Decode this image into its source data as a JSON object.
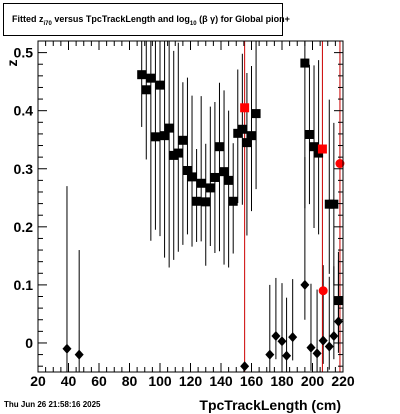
{
  "title": {
    "p1": "Fitted  z",
    "sub1": "i70",
    "p2": " versus TpcTrackLength and log",
    "sub2": "10",
    "p3": " (β  γ) for Global pion+"
  },
  "timestamp": "Thu Jun 26 21:58:16 2025",
  "colors": {
    "black": "#000000",
    "red": "#ff0000"
  },
  "chart_data": {
    "type": "scatter",
    "title": "Fitted z_i70 versus TpcTrackLength and log10(βγ) for Global pion+",
    "xlabel": "TpcTrackLength (cm)",
    "ylabel": "z",
    "xlim": [
      20,
      220
    ],
    "ylim": [
      -0.05,
      0.52
    ],
    "xticks": [
      20,
      40,
      60,
      80,
      100,
      120,
      140,
      160,
      180,
      200,
      220
    ],
    "yticks": [
      0,
      0.1,
      0.2,
      0.3,
      0.4,
      0.5
    ],
    "ytick_labels": [
      "0",
      "0.1",
      "0.2",
      "0.3",
      "0.4",
      "0.5"
    ],
    "vlines": [
      155.5,
      206.5,
      218
    ],
    "series": [
      {
        "marker": "square",
        "color": "#000000",
        "points": [
          [
            88,
            0.462,
            0.32,
            0.09
          ],
          [
            91,
            0.436,
            0.28,
            0.12
          ],
          [
            94,
            0.456,
            0.26,
            0.28
          ],
          [
            97,
            0.355,
            0.28,
            0.16
          ],
          [
            100,
            0.444,
            0.22,
            0.26
          ],
          [
            103,
            0.357,
            0.22,
            0.21
          ],
          [
            106,
            0.37,
            0.19,
            0.24
          ],
          [
            109,
            0.323,
            0.18,
            0.18
          ],
          [
            112,
            0.327,
            0.19,
            0.17
          ],
          [
            115,
            0.349,
            0.1,
            0.18
          ],
          [
            118,
            0.297,
            0.16,
            0.11
          ],
          [
            121,
            0.286,
            0.14,
            0.12
          ],
          [
            124,
            0.244,
            0.09,
            0.07
          ],
          [
            127,
            0.275,
            0.15,
            0.1
          ],
          [
            130,
            0.243,
            0.1,
            0.11
          ],
          [
            133,
            0.267,
            0.14,
            0.1
          ],
          [
            136,
            0.285,
            0.13,
            0.13
          ],
          [
            139,
            0.338,
            0.11,
            0.18
          ],
          [
            142,
            0.295,
            0.14,
            0.16
          ],
          [
            145,
            0.28,
            0.12,
            0.15
          ],
          [
            148,
            0.244,
            0.1,
            0.09
          ],
          [
            151,
            0.361,
            0.11,
            0.12
          ],
          [
            154,
            0.368,
            0.13,
            0.13
          ],
          [
            157,
            0.345,
            0.12,
            0.16
          ],
          [
            160,
            0.357,
            0.12,
            0.13
          ],
          [
            163,
            0.395,
            0.14,
            0.13
          ],
          [
            195,
            0.482,
            0.2,
            0.25
          ],
          [
            198,
            0.359,
            0.12,
            0.12
          ],
          [
            201,
            0.338,
            0.14,
            0.14
          ],
          [
            204,
            0.327,
            0.16,
            0.14
          ],
          [
            211,
            0.239,
            0.18,
            0.12
          ],
          [
            214,
            0.239,
            0.14,
            0.14
          ],
          [
            217,
            0.073,
            0.07,
            0.09
          ]
        ]
      },
      {
        "marker": "diamond",
        "color": "#000000",
        "points": [
          [
            39,
            -0.01,
            0.28,
            0.05
          ],
          [
            47,
            -0.02,
            0.18,
            0.04
          ],
          [
            155.5,
            -0.04,
            0.0,
            0.0
          ],
          [
            172,
            -0.02,
            0.12,
            0.04
          ],
          [
            176,
            0.012,
            0.1,
            0.04
          ],
          [
            180,
            0.003,
            0.1,
            0.04
          ],
          [
            183,
            -0.022,
            0.1,
            0.04
          ],
          [
            187,
            0.01,
            0.1,
            0.04
          ],
          [
            195,
            0.1,
            0.22,
            0.06
          ],
          [
            199,
            -0.008,
            0.11,
            0.04
          ],
          [
            203,
            -0.018,
            0.11,
            0.04
          ],
          [
            207,
            0.004,
            0.13,
            0.04
          ],
          [
            211,
            -0.006,
            0.12,
            0.04
          ],
          [
            214,
            0.012,
            0.12,
            0.04
          ],
          [
            217,
            0.037,
            0.12,
            0.04
          ]
        ]
      },
      {
        "marker": "square",
        "color": "#ff0000",
        "points": [
          [
            155.5,
            0.405,
            0,
            0
          ],
          [
            206.5,
            0.334,
            0,
            0
          ]
        ]
      },
      {
        "marker": "circle",
        "color": "#ff0000",
        "points": [
          [
            207,
            0.09,
            0,
            0
          ],
          [
            218,
            0.309,
            0,
            0
          ]
        ]
      }
    ]
  }
}
